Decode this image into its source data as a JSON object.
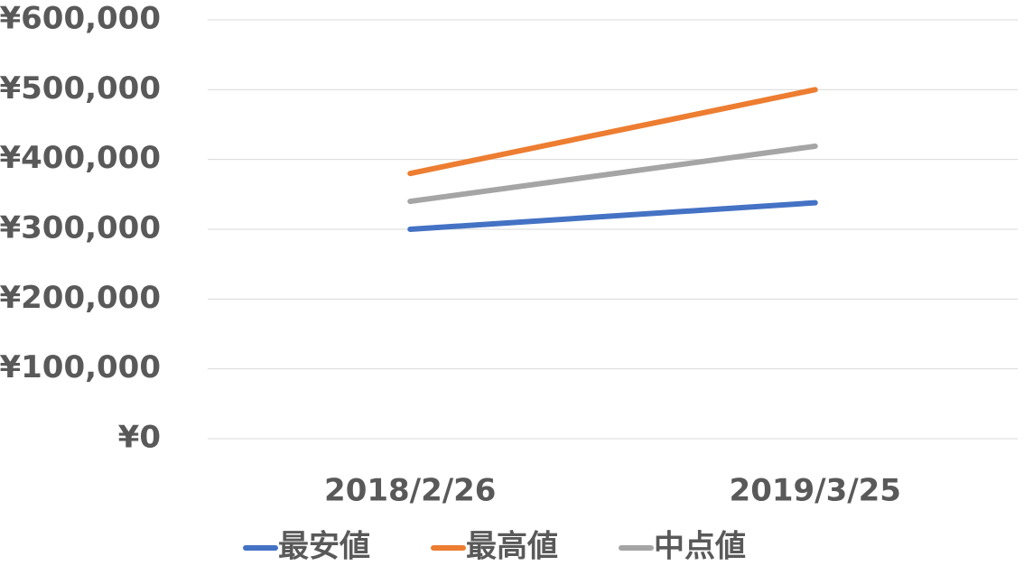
{
  "chart_data": {
    "type": "line",
    "categories": [
      "2018/2/26",
      "2019/3/25"
    ],
    "series": [
      {
        "name": "最安値",
        "color": "#4472c4",
        "values": [
          300000,
          338000
        ]
      },
      {
        "name": "最高値",
        "color": "#ed7d31",
        "values": [
          380000,
          500000
        ]
      },
      {
        "name": "中点値",
        "color": "#a5a5a5",
        "values": [
          340000,
          419000
        ]
      }
    ],
    "ylim": [
      0,
      600000
    ],
    "yticks": [
      {
        "value": 0,
        "label": "¥0"
      },
      {
        "value": 100000,
        "label": "¥100,000"
      },
      {
        "value": 200000,
        "label": "¥200,000"
      },
      {
        "value": 300000,
        "label": "¥300,000"
      },
      {
        "value": 400000,
        "label": "¥400,000"
      },
      {
        "value": 500000,
        "label": "¥500,000"
      },
      {
        "value": 600000,
        "label": "¥600,000"
      }
    ],
    "grid": true,
    "legend": "bottom"
  }
}
